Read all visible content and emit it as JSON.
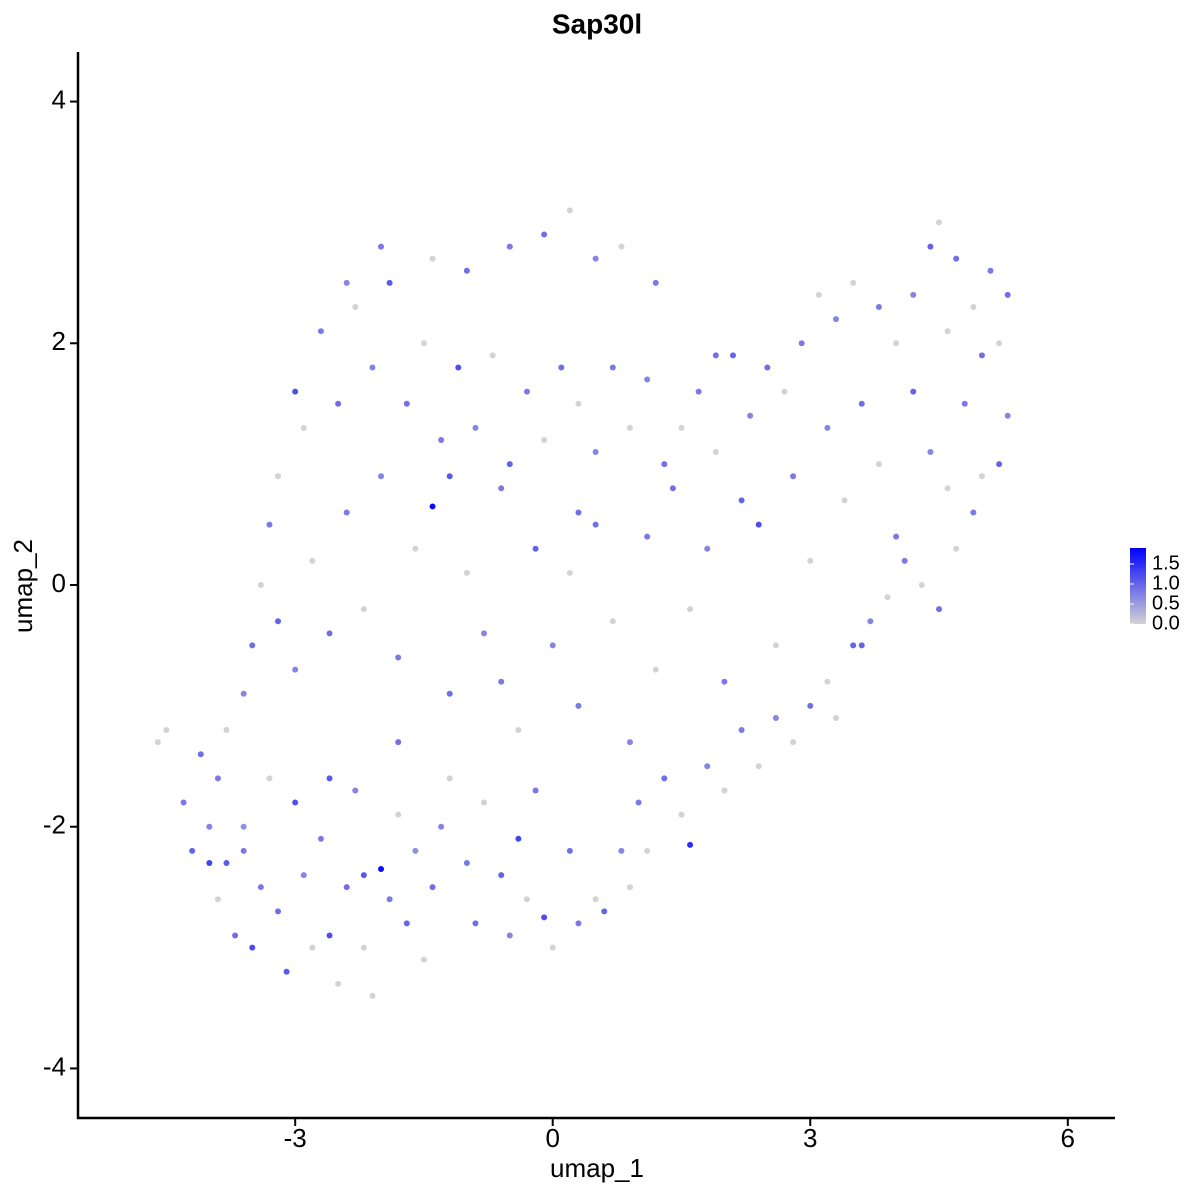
{
  "chart_data": {
    "type": "scatter",
    "title": "Sap30l",
    "x_label": "umap_1",
    "y_label": "umap_2",
    "xlim": [
      -5.53,
      6.55
    ],
    "ylim": [
      -4.41,
      4.41
    ],
    "xticks": [
      -3,
      0,
      3,
      6
    ],
    "yticks": [
      -4,
      -2,
      0,
      2,
      4
    ],
    "color_low": "#d3d3d3",
    "color_high": "#0000ff",
    "colorlim": [
      0,
      1.9
    ],
    "colorticks": [
      {
        "value": 0,
        "label": "0.0"
      },
      0.5,
      {
        "value": 1,
        "label": "1.0"
      },
      1.5
    ],
    "x": [
      -4.6,
      -4.5,
      -4.3,
      -4.1,
      -4.2,
      -4.0,
      -3.9,
      -3.8,
      -3.7,
      -3.6,
      -3.5,
      -3.4,
      -3.3,
      -3.2,
      -3.1,
      -3.0,
      -2.9,
      -2.8,
      -2.7,
      -2.6,
      -2.5,
      -2.4,
      -2.3,
      -2.2,
      -2.1,
      -2.0,
      -1.9,
      -1.8,
      -1.7,
      -1.6,
      -1.5,
      -1.4,
      -1.3,
      -1.2,
      -1.0,
      -0.9,
      -0.8,
      -0.6,
      -0.5,
      -0.4,
      -0.3,
      -0.2,
      -0.1,
      0.0,
      0.2,
      0.3,
      0.5,
      0.6,
      0.8,
      0.9,
      1.0,
      1.1,
      1.3,
      1.5,
      1.6,
      1.8,
      2.0,
      2.2,
      2.4,
      2.6,
      2.8,
      3.0,
      3.2,
      3.3,
      3.5,
      3.7,
      3.9,
      4.1,
      4.3,
      4.5,
      4.7,
      4.9,
      5.0,
      5.2,
      5.3,
      5.2,
      5.3,
      5.1,
      4.9,
      4.7,
      4.5,
      4.4,
      4.2,
      4.0,
      3.8,
      3.5,
      3.3,
      3.1,
      2.9,
      2.7,
      2.5,
      2.3,
      2.1,
      1.9,
      1.7,
      1.5,
      1.3,
      1.1,
      0.9,
      0.7,
      0.5,
      0.3,
      0.1,
      -0.1,
      -0.3,
      -0.5,
      -0.7,
      -0.9,
      -1.1,
      -1.3,
      -1.5,
      -1.7,
      -1.9,
      -2.1,
      -2.3,
      -2.5,
      -2.7,
      -2.9,
      -3.0,
      -3.2,
      -3.3,
      -3.4,
      -3.5,
      -3.6,
      -3.8,
      -3.9,
      -3.2,
      -3.0,
      -2.8,
      -2.6,
      -2.4,
      -2.2,
      -2.0,
      -1.8,
      -1.6,
      -1.4,
      -1.2,
      -1.0,
      -0.8,
      -0.6,
      -0.4,
      -0.2,
      0.0,
      0.2,
      0.3,
      0.5,
      0.7,
      0.9,
      1.1,
      1.2,
      1.4,
      1.6,
      1.8,
      2.0,
      2.2,
      2.4,
      2.6,
      2.8,
      3.0,
      3.2,
      3.4,
      3.6,
      3.8,
      4.0,
      4.2,
      4.4,
      4.6,
      4.8,
      5.0,
      4.6,
      -0.5,
      -0.1,
      0.2,
      0.5,
      0.8,
      1.2,
      -1.0,
      -1.4,
      -2.0,
      -2.4,
      -4.0,
      -2.6,
      -2.2,
      -1.8,
      -0.6,
      0.3,
      -1.2,
      1.9,
      3.6,
      -3.6
    ],
    "y": [
      -1.3,
      -1.2,
      -1.8,
      -1.4,
      -2.2,
      -2.0,
      -2.6,
      -2.3,
      -2.9,
      -2.0,
      -3.0,
      -2.5,
      -1.6,
      -2.7,
      -3.2,
      -1.8,
      -2.4,
      -3.0,
      -2.1,
      -2.9,
      -3.3,
      -2.5,
      -1.7,
      -3.0,
      -3.4,
      -2.35,
      -2.6,
      -1.9,
      -2.8,
      -2.2,
      -3.1,
      -2.5,
      -2.0,
      -1.6,
      -2.3,
      -2.8,
      -1.8,
      -2.4,
      -2.9,
      -2.1,
      -2.6,
      -1.7,
      -2.75,
      -3.0,
      -2.2,
      -2.8,
      -2.6,
      -2.7,
      -2.2,
      -2.5,
      -1.8,
      -2.2,
      -1.6,
      -1.9,
      -2.15,
      -1.5,
      -1.7,
      -1.2,
      -1.5,
      -1.1,
      -1.3,
      -1.0,
      -0.8,
      -1.1,
      -0.5,
      -0.3,
      -0.1,
      0.2,
      0.0,
      -0.2,
      0.3,
      0.6,
      0.9,
      1.0,
      1.4,
      2.0,
      2.4,
      2.6,
      2.3,
      2.7,
      3.0,
      2.8,
      2.4,
      2.0,
      2.3,
      2.5,
      2.2,
      2.4,
      2.0,
      1.6,
      1.8,
      1.4,
      1.9,
      1.1,
      1.6,
      1.3,
      1.0,
      1.7,
      1.3,
      1.8,
      1.1,
      1.5,
      1.8,
      1.2,
      1.6,
      1.0,
      1.9,
      1.3,
      1.8,
      1.2,
      2.0,
      1.5,
      2.5,
      1.8,
      2.3,
      1.5,
      2.1,
      1.3,
      1.6,
      0.9,
      0.5,
      0.0,
      -0.5,
      -0.9,
      -1.2,
      -1.6,
      -0.3,
      -0.7,
      0.2,
      -0.4,
      0.6,
      -0.2,
      0.9,
      -0.6,
      0.3,
      0.65,
      -0.9,
      0.1,
      -0.4,
      0.8,
      -1.2,
      0.3,
      -0.5,
      0.1,
      -1.0,
      0.5,
      -0.3,
      -1.3,
      0.4,
      -0.7,
      0.8,
      -0.2,
      0.3,
      -0.8,
      0.7,
      0.5,
      -0.5,
      0.9,
      0.2,
      1.3,
      0.7,
      1.5,
      1.0,
      0.4,
      1.6,
      1.1,
      0.8,
      1.5,
      1.9,
      2.1,
      2.8,
      2.9,
      3.1,
      2.7,
      2.8,
      2.5,
      2.6,
      2.7,
      2.8,
      2.5,
      -2.3,
      -1.6,
      -2.4,
      -1.3,
      -0.8,
      0.6,
      0.9,
      1.9,
      -0.5,
      -2.2
    ],
    "values": [
      0,
      0,
      0.8,
      0.9,
      1.0,
      0.7,
      0,
      1.1,
      0.9,
      0.6,
      1.2,
      0.8,
      0,
      0.9,
      1.1,
      1.2,
      0.7,
      0,
      0.8,
      1.2,
      0,
      0.9,
      0.7,
      0,
      0,
      1.8,
      0.8,
      0,
      1.0,
      0.6,
      0,
      0.9,
      0.7,
      0,
      0.8,
      0.9,
      0,
      1.0,
      0.7,
      1.3,
      0,
      0.8,
      1.2,
      0,
      0.9,
      0.8,
      0,
      1.0,
      0.7,
      0,
      0.8,
      0,
      0.9,
      0,
      1.5,
      0.7,
      0,
      0.8,
      0,
      0.7,
      0,
      0.9,
      0,
      0,
      1.0,
      0.7,
      0,
      0.8,
      0,
      0.9,
      0,
      0.8,
      0,
      1.0,
      0.7,
      0,
      0.9,
      0.8,
      0,
      0.9,
      0,
      1.0,
      0.7,
      0,
      0.8,
      0,
      0.7,
      0,
      0.8,
      0,
      0.9,
      0.7,
      1.0,
      0,
      0.8,
      0,
      0.9,
      0.7,
      0,
      0.8,
      0.7,
      0,
      0.9,
      0,
      0.8,
      1.0,
      0,
      0.7,
      1.2,
      0.8,
      0,
      0.9,
      1.1,
      0.7,
      0,
      0.9,
      0.8,
      0,
      1.2,
      0,
      0.8,
      0,
      0.9,
      0.7,
      0,
      0.8,
      1.0,
      0.7,
      0,
      0.9,
      0.8,
      0,
      0.7,
      0.8,
      0,
      1.8,
      0.9,
      0,
      0.7,
      0.8,
      0,
      1.0,
      0.7,
      0,
      0.8,
      0.9,
      0,
      0.7,
      0.8,
      0,
      0.9,
      0,
      0.7,
      0.8,
      1.0,
      1.2,
      0,
      0.8,
      0,
      0.7,
      0,
      0.9,
      0,
      0.8,
      1.0,
      0.7,
      0,
      0.8,
      0.9,
      0,
      0.8,
      0.9,
      0,
      0.7,
      0,
      0.8,
      0.9,
      0,
      0.8,
      0.7,
      1.3,
      1.1,
      1.1,
      0.9,
      0.8,
      0.9,
      1.1,
      0.9,
      1.0,
      0.8
    ]
  }
}
